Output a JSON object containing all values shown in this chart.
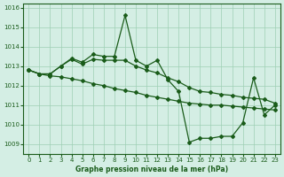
{
  "xlabel": "Graphe pression niveau de la mer (hPa)",
  "background_color": "#d4eee4",
  "grid_color": "#9ecfb4",
  "line_color": "#1a5c1a",
  "ylim": [
    1008.5,
    1016.2
  ],
  "xlim": [
    -0.5,
    23.5
  ],
  "yticks": [
    1009,
    1010,
    1011,
    1012,
    1013,
    1014,
    1015,
    1016
  ],
  "xticks": [
    0,
    1,
    2,
    3,
    4,
    5,
    6,
    7,
    8,
    9,
    10,
    11,
    12,
    13,
    14,
    15,
    16,
    17,
    18,
    19,
    20,
    21,
    22,
    23
  ],
  "s1": [
    1012.8,
    1012.6,
    1012.6,
    1013.0,
    1013.4,
    1013.2,
    1013.6,
    1013.5,
    1013.5,
    1015.6,
    1013.3,
    1013.0,
    1013.3,
    1012.3,
    1011.7,
    1009.1,
    1009.3,
    1009.3,
    1009.4,
    1009.4,
    1010.1,
    1012.4,
    1010.5,
    1011.0
  ],
  "s2": [
    1012.8,
    1012.6,
    1012.6,
    1013.0,
    1013.35,
    1013.1,
    1013.35,
    1013.3,
    1013.3,
    1013.3,
    1013.0,
    1012.8,
    1012.65,
    1012.4,
    1012.2,
    1011.9,
    1011.7,
    1011.65,
    1011.55,
    1011.5,
    1011.4,
    1011.35,
    1011.3,
    1011.1
  ],
  "s3": [
    1012.8,
    1012.6,
    1012.5,
    1012.45,
    1012.35,
    1012.25,
    1012.1,
    1012.0,
    1011.85,
    1011.75,
    1011.65,
    1011.5,
    1011.4,
    1011.3,
    1011.2,
    1011.1,
    1011.05,
    1011.0,
    1011.0,
    1010.95,
    1010.9,
    1010.85,
    1010.8,
    1010.75
  ]
}
